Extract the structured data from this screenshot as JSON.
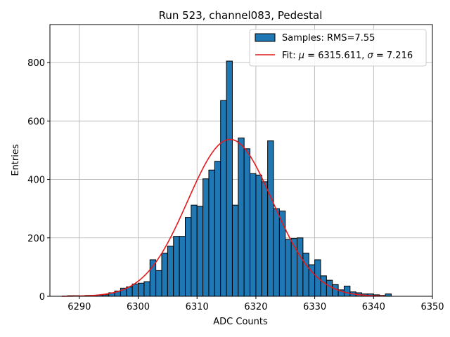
{
  "chart_data": {
    "type": "bar",
    "title": "Run 523, channel083, Pedestal",
    "xlabel": "ADC Counts",
    "ylabel": "Entries",
    "xlim": [
      6285,
      6350
    ],
    "ylim": [
      0,
      930
    ],
    "grid": true,
    "xticks": [
      6290,
      6300,
      6310,
      6320,
      6330,
      6340,
      6350
    ],
    "yticks": [
      0,
      200,
      400,
      600,
      800
    ],
    "bins": [
      6288,
      6289,
      6290,
      6291,
      6292,
      6293,
      6294,
      6295,
      6296,
      6297,
      6298,
      6299,
      6300,
      6301,
      6302,
      6303,
      6304,
      6305,
      6306,
      6307,
      6308,
      6309,
      6310,
      6311,
      6312,
      6313,
      6314,
      6315,
      6316,
      6317,
      6318,
      6319,
      6320,
      6321,
      6322,
      6323,
      6324,
      6325,
      6326,
      6327,
      6328,
      6329,
      6330,
      6331,
      6332,
      6333,
      6334,
      6335,
      6336,
      6337,
      6338,
      6339,
      6340,
      6341,
      6342
    ],
    "bin_width": 1,
    "values": [
      2,
      2,
      1,
      3,
      3,
      4,
      5,
      12,
      18,
      28,
      32,
      42,
      45,
      50,
      125,
      88,
      148,
      172,
      205,
      205,
      270,
      312,
      308,
      402,
      432,
      462,
      670,
      805,
      312,
      542,
      505,
      420,
      415,
      392,
      532,
      300,
      292,
      195,
      198,
      200,
      148,
      108,
      125,
      70,
      55,
      40,
      22,
      35,
      15,
      12,
      8,
      8,
      5,
      3,
      8
    ],
    "fit": {
      "mu": 6315.611,
      "sigma": 7.216,
      "amplitude": 537,
      "x_range": [
        6287,
        6342
      ]
    },
    "legend_position": "upper-right",
    "legend": {
      "samples_label": "Samples: RMS=7.55",
      "fit_label_prefix": "Fit: ",
      "fit_mu_symbol": "μ",
      "fit_mu_value": " = 6315.611, ",
      "fit_sigma_symbol": "σ",
      "fit_sigma_value": " = 7.216"
    },
    "colors": {
      "bar": "#1f77b4",
      "bar_edge": "#000000",
      "fit": "#e41a1c",
      "grid": "#b0b0b0"
    }
  }
}
